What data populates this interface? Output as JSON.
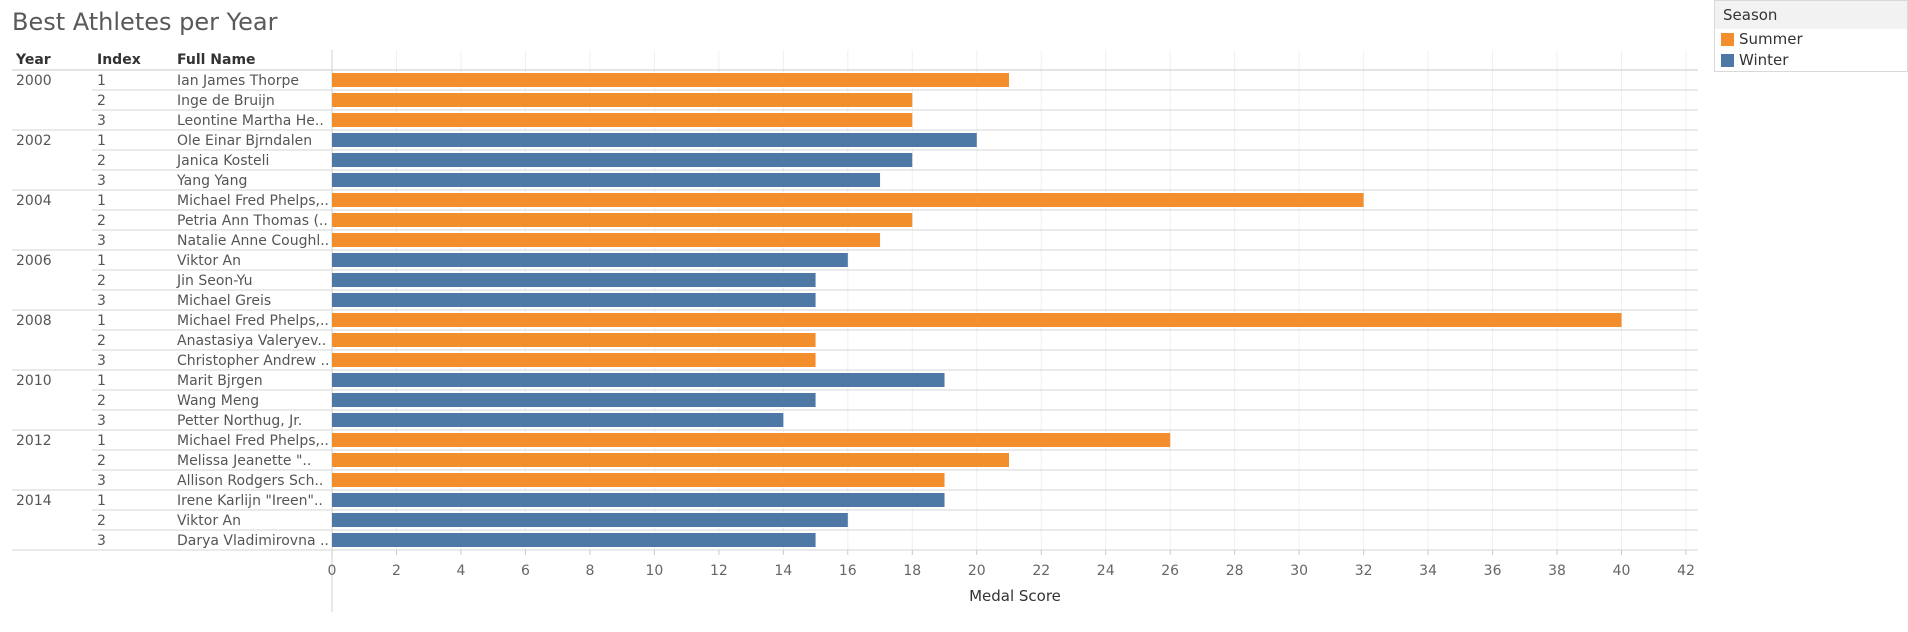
{
  "title": "Best Athletes per Year",
  "headers": {
    "year": "Year",
    "index": "Index",
    "name": "Full Name"
  },
  "legend": {
    "title": "Season",
    "items": [
      {
        "label": "Summer",
        "color": "#f28e2b"
      },
      {
        "label": "Winter",
        "color": "#4e79a7"
      }
    ]
  },
  "chart_data": {
    "type": "bar",
    "orientation": "horizontal",
    "xlabel": "Medal Score",
    "xlim": [
      0,
      42
    ],
    "xticks": [
      0,
      2,
      4,
      6,
      8,
      10,
      12,
      14,
      16,
      18,
      20,
      22,
      24,
      26,
      28,
      30,
      32,
      34,
      36,
      38,
      40,
      42
    ],
    "grid": true,
    "legend_position": "top-right",
    "rows": [
      {
        "year": "2000",
        "index": "1",
        "name": "Ian James Thorpe",
        "season": "Summer",
        "value": 21
      },
      {
        "year": "",
        "index": "2",
        "name": "Inge de Bruijn",
        "season": "Summer",
        "value": 18
      },
      {
        "year": "",
        "index": "3",
        "name": "Leontine Martha He..",
        "season": "Summer",
        "value": 18
      },
      {
        "year": "2002",
        "index": "1",
        "name": "Ole Einar Bjrndalen",
        "season": "Winter",
        "value": 20
      },
      {
        "year": "",
        "index": "2",
        "name": "Janica Kosteli",
        "season": "Winter",
        "value": 18
      },
      {
        "year": "",
        "index": "3",
        "name": "Yang Yang",
        "season": "Winter",
        "value": 17
      },
      {
        "year": "2004",
        "index": "1",
        "name": "Michael Fred Phelps,..",
        "season": "Summer",
        "value": 32
      },
      {
        "year": "",
        "index": "2",
        "name": "Petria Ann Thomas (..",
        "season": "Summer",
        "value": 18
      },
      {
        "year": "",
        "index": "3",
        "name": "Natalie Anne Coughl..",
        "season": "Summer",
        "value": 17
      },
      {
        "year": "2006",
        "index": "1",
        "name": "Viktor An",
        "season": "Winter",
        "value": 16
      },
      {
        "year": "",
        "index": "2",
        "name": "Jin Seon-Yu",
        "season": "Winter",
        "value": 15
      },
      {
        "year": "",
        "index": "3",
        "name": "Michael Greis",
        "season": "Winter",
        "value": 15
      },
      {
        "year": "2008",
        "index": "1",
        "name": "Michael Fred Phelps,..",
        "season": "Summer",
        "value": 40
      },
      {
        "year": "",
        "index": "2",
        "name": "Anastasiya Valeryev..",
        "season": "Summer",
        "value": 15
      },
      {
        "year": "",
        "index": "3",
        "name": "Christopher Andrew ..",
        "season": "Summer",
        "value": 15
      },
      {
        "year": "2010",
        "index": "1",
        "name": "Marit Bjrgen",
        "season": "Winter",
        "value": 19
      },
      {
        "year": "",
        "index": "2",
        "name": "Wang Meng",
        "season": "Winter",
        "value": 15
      },
      {
        "year": "",
        "index": "3",
        "name": "Petter Northug, Jr.",
        "season": "Winter",
        "value": 14
      },
      {
        "year": "2012",
        "index": "1",
        "name": "Michael Fred Phelps,..",
        "season": "Summer",
        "value": 26
      },
      {
        "year": "",
        "index": "2",
        "name": "Melissa Jeanette \"..",
        "season": "Summer",
        "value": 21
      },
      {
        "year": "",
        "index": "3",
        "name": "Allison Rodgers Sch..",
        "season": "Summer",
        "value": 19
      },
      {
        "year": "2014",
        "index": "1",
        "name": "Irene Karlijn \"Ireen\"..",
        "season": "Winter",
        "value": 19
      },
      {
        "year": "",
        "index": "2",
        "name": "Viktor An",
        "season": "Winter",
        "value": 16
      },
      {
        "year": "",
        "index": "3",
        "name": "Darya Vladimirovna ..",
        "season": "Winter",
        "value": 15
      }
    ]
  }
}
